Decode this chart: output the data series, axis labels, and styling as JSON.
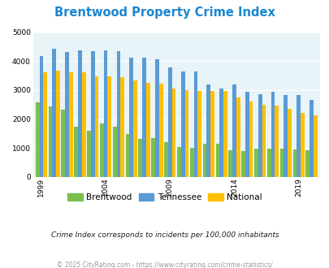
{
  "title": "Brentwood Property Crime Index",
  "years": [
    1999,
    2000,
    2001,
    2002,
    2003,
    2004,
    2005,
    2006,
    2007,
    2008,
    2009,
    2010,
    2011,
    2012,
    2013,
    2014,
    2015,
    2016,
    2017,
    2018,
    2019,
    2020,
    2021
  ],
  "brentwood": [
    2580,
    2440,
    2330,
    1730,
    1580,
    1840,
    1720,
    1480,
    1300,
    1340,
    1200,
    1040,
    1010,
    1150,
    1140,
    910,
    900,
    980,
    980,
    980,
    940,
    920,
    0
  ],
  "tennessee": [
    4170,
    4420,
    4310,
    4380,
    4350,
    4360,
    4330,
    4120,
    4110,
    4060,
    3780,
    3640,
    3650,
    3180,
    3060,
    3180,
    2930,
    2870,
    2950,
    2840,
    2830,
    2650,
    0
  ],
  "national": [
    3600,
    3660,
    3620,
    3600,
    3470,
    3470,
    3440,
    3340,
    3240,
    3220,
    3050,
    3010,
    2960,
    2960,
    2960,
    2740,
    2590,
    2500,
    2460,
    2360,
    2200,
    2120,
    0
  ],
  "bar_colors": {
    "brentwood": "#7bbf4e",
    "tennessee": "#5b9bd5",
    "national": "#ffc000"
  },
  "ylim": [
    0,
    5000
  ],
  "yticks": [
    0,
    1000,
    2000,
    3000,
    4000,
    5000
  ],
  "xtick_labels": [
    "1999",
    "2004",
    "2009",
    "2014",
    "2019"
  ],
  "xtick_positions": [
    1999,
    2004,
    2009,
    2014,
    2019
  ],
  "plot_bg_color": "#e8f4f8",
  "fig_bg_color": "#ffffff",
  "subtitle": "Crime Index corresponds to incidents per 100,000 inhabitants",
  "footer": "© 2025 CityRating.com - https://www.cityrating.com/crime-statistics/",
  "title_color": "#1a87d0",
  "subtitle_color": "#222222",
  "footer_color": "#999999",
  "legend_labels": [
    "Brentwood",
    "Tennessee",
    "National"
  ]
}
